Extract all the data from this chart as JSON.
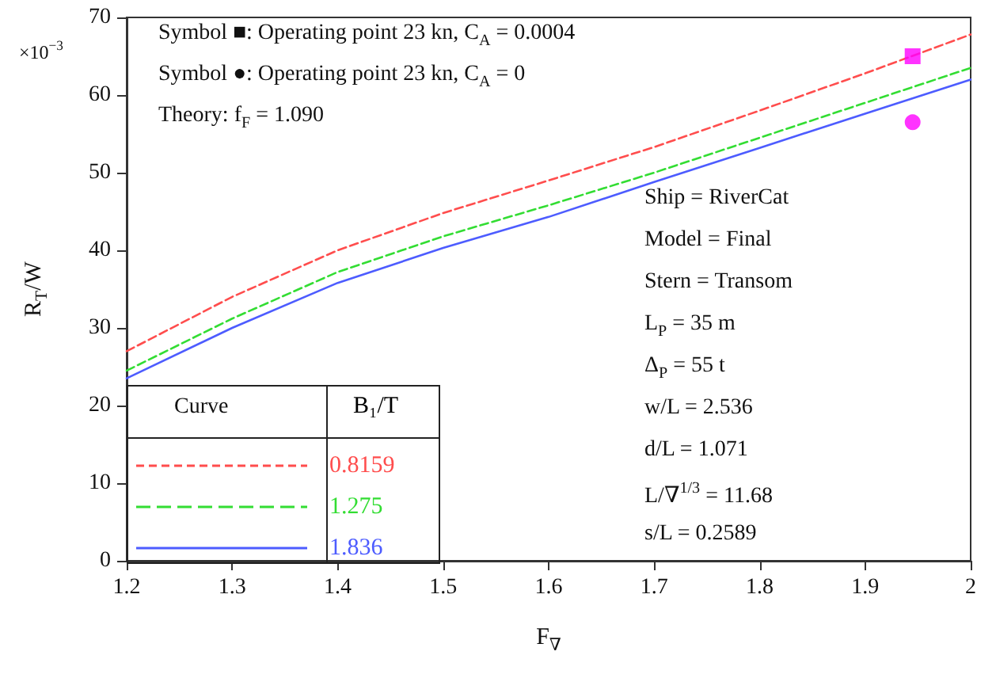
{
  "chart_data": {
    "type": "line",
    "xlabel": "F$_{∇}$",
    "ylabel": "R$_{T}$/W",
    "legend_title": "B₁/T",
    "legend": "bottom left",
    "x": [
      1.2,
      1.3,
      1.4,
      1.5,
      1.6,
      1.7,
      1.8,
      1.9,
      2.0
    ],
    "xlim": [
      1.2,
      2
    ],
    "xticks": [
      1.2,
      1.3,
      1.4,
      1.5,
      1.6,
      1.7,
      1.8,
      1.9,
      2
    ],
    "ylim": [
      0,
      70
    ],
    "yticks": [
      0,
      10,
      20,
      30,
      40,
      50,
      60,
      70
    ],
    "series": [
      {
        "name": "0.8159",
        "color": "#ff4d4d",
        "line_style": "dashed",
        "marker": "none",
        "values": [
          27,
          34,
          40,
          44.8,
          49,
          53.3,
          58,
          62.8,
          67.8
        ]
      },
      {
        "name": "1.275",
        "color": "#33dd33",
        "line_style": "dashed",
        "marker": "none",
        "values": [
          24.5,
          31.2,
          37.2,
          41.8,
          45.8,
          50,
          54.5,
          59,
          63.5
        ]
      },
      {
        "name": "1.836",
        "color": "#4d5cff",
        "line_style": "solid",
        "marker": "none",
        "values": [
          23.5,
          30,
          35.8,
          40.3,
          44.3,
          48.8,
          53.2,
          57.6,
          62
        ]
      },
      {
        "type": "scatter",
        "color": "#ff00ff",
        "marker": "square",
        "x": [
          1.945
        ],
        "values": [
          65
        ]
      },
      {
        "type": "scatter",
        "color": "#ff00ff",
        "marker": "circle",
        "x": [
          1.945
        ],
        "values": [
          56.5
        ]
      }
    ],
    "annotations": [
      "Symbol ■: Operating point 23 kn, C$_{A}$ = 0.0004",
      "Symbol ●: Operating point 23 kn, C$_{A}$ = 0",
      "Theory: f$_{F}$ = 1.090",
      "×10$^{−3}$",
      "Curve",
      "Ship = RiverCat",
      "Model = Final",
      "Stern = Transom",
      "L$_{P}$ = 35 m",
      "Δ$_{P}$ = 55 t",
      "w/L = 2.536",
      "d/L = 1.071",
      "L/∇$^{1/3}$ = 11.68",
      "s/L = 0.2589"
    ]
  }
}
